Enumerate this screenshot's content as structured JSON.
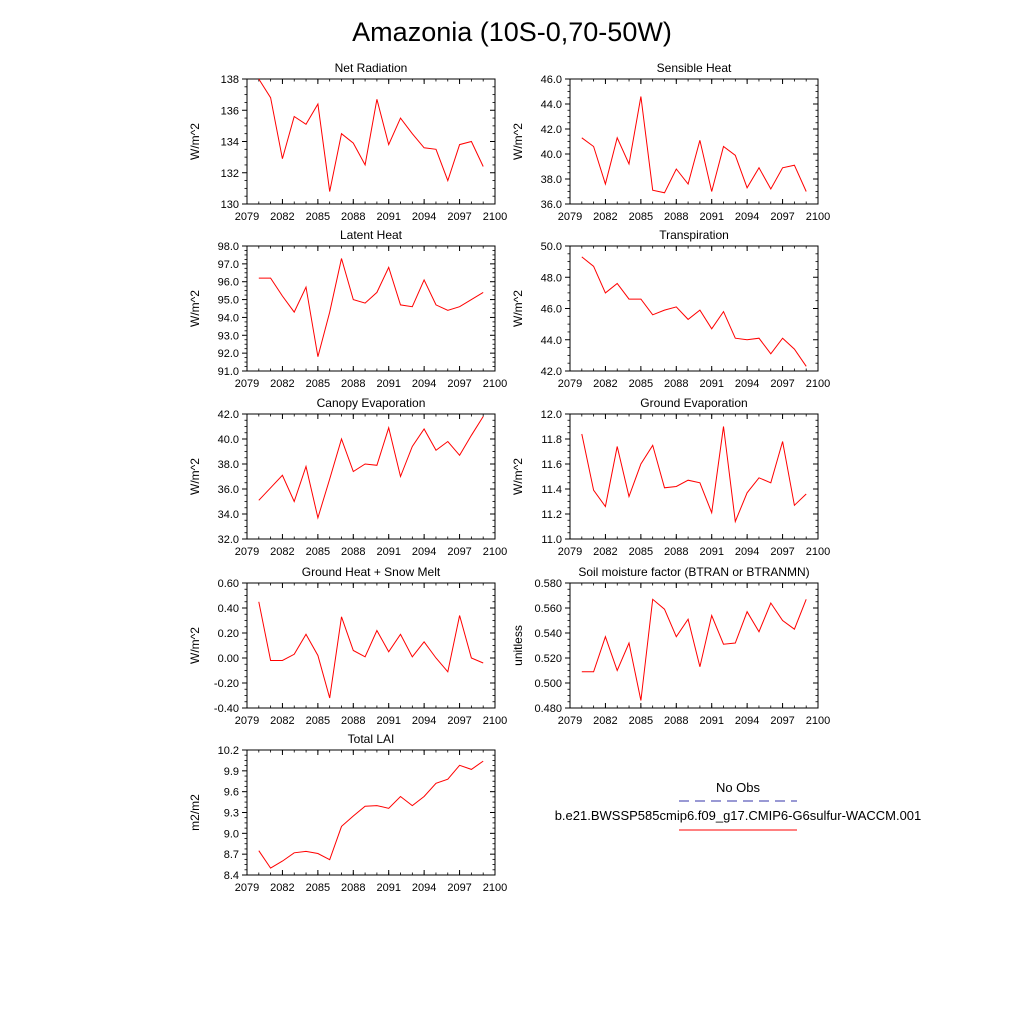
{
  "figure": {
    "title": "Amazonia (10S-0,70-50W)"
  },
  "legend": {
    "obs_label": "No Obs",
    "model_label": "b.e21.BWSSP585cmip6.f09_g17.CMIP6-G6sulfur-WACCM.001",
    "obs_color": "#3333aa",
    "model_color": "#ff0000"
  },
  "chart_data": [
    {
      "type": "line",
      "title": "Net Radiation",
      "ylabel": "W/m^2",
      "xlabel": "",
      "xlim": [
        2079,
        2100
      ],
      "x_ticks": [
        2079,
        2082,
        2085,
        2088,
        2091,
        2094,
        2097,
        2100
      ],
      "ylim": [
        130,
        138
      ],
      "y_ticks": [
        "130",
        "132",
        "134",
        "136",
        "138"
      ],
      "x": [
        2080,
        2081,
        2082,
        2083,
        2084,
        2085,
        2086,
        2087,
        2088,
        2089,
        2090,
        2091,
        2092,
        2093,
        2094,
        2095,
        2096,
        2097,
        2098,
        2099
      ],
      "series": [
        {
          "color": "#ff0000",
          "values": [
            138.0,
            136.8,
            132.9,
            135.6,
            135.1,
            136.4,
            130.8,
            134.5,
            133.9,
            132.5,
            136.7,
            133.8,
            135.5,
            134.5,
            133.6,
            133.5,
            131.5,
            133.8,
            134.0,
            132.4
          ]
        }
      ]
    },
    {
      "type": "line",
      "title": "Sensible Heat",
      "ylabel": "W/m^2",
      "xlabel": "",
      "xlim": [
        2079,
        2100
      ],
      "x_ticks": [
        2079,
        2082,
        2085,
        2088,
        2091,
        2094,
        2097,
        2100
      ],
      "ylim": [
        36.0,
        46.0
      ],
      "y_ticks": [
        "36.0",
        "38.0",
        "40.0",
        "42.0",
        "44.0",
        "46.0"
      ],
      "x": [
        2080,
        2081,
        2082,
        2083,
        2084,
        2085,
        2086,
        2087,
        2088,
        2089,
        2090,
        2091,
        2092,
        2093,
        2094,
        2095,
        2096,
        2097,
        2098,
        2099
      ],
      "series": [
        {
          "color": "#ff0000",
          "values": [
            41.3,
            40.6,
            37.6,
            41.3,
            39.2,
            44.6,
            37.1,
            36.9,
            38.8,
            37.6,
            41.1,
            37.0,
            40.6,
            39.9,
            37.3,
            38.9,
            37.2,
            38.9,
            39.1,
            37.0
          ]
        }
      ]
    },
    {
      "type": "line",
      "title": "Latent Heat",
      "ylabel": "W/m^2",
      "xlabel": "",
      "xlim": [
        2079,
        2100
      ],
      "x_ticks": [
        2079,
        2082,
        2085,
        2088,
        2091,
        2094,
        2097,
        2100
      ],
      "ylim": [
        91.0,
        98.0
      ],
      "y_ticks": [
        "91.0",
        "92.0",
        "93.0",
        "94.0",
        "95.0",
        "96.0",
        "97.0",
        "98.0"
      ],
      "x": [
        2080,
        2081,
        2082,
        2083,
        2084,
        2085,
        2086,
        2087,
        2088,
        2089,
        2090,
        2091,
        2092,
        2093,
        2094,
        2095,
        2096,
        2097,
        2098,
        2099
      ],
      "series": [
        {
          "color": "#ff0000",
          "values": [
            96.2,
            96.2,
            95.2,
            94.3,
            95.7,
            91.8,
            94.3,
            97.3,
            95.0,
            94.8,
            95.4,
            96.8,
            94.7,
            94.6,
            96.1,
            94.7,
            94.4,
            94.6,
            95.0,
            95.4
          ]
        }
      ]
    },
    {
      "type": "line",
      "title": "Transpiration",
      "ylabel": "W/m^2",
      "xlabel": "",
      "xlim": [
        2079,
        2100
      ],
      "x_ticks": [
        2079,
        2082,
        2085,
        2088,
        2091,
        2094,
        2097,
        2100
      ],
      "ylim": [
        42.0,
        50.0
      ],
      "y_ticks": [
        "42.0",
        "44.0",
        "46.0",
        "48.0",
        "50.0"
      ],
      "x": [
        2080,
        2081,
        2082,
        2083,
        2084,
        2085,
        2086,
        2087,
        2088,
        2089,
        2090,
        2091,
        2092,
        2093,
        2094,
        2095,
        2096,
        2097,
        2098,
        2099
      ],
      "series": [
        {
          "color": "#ff0000",
          "values": [
            49.3,
            48.7,
            47.0,
            47.6,
            46.6,
            46.6,
            45.6,
            45.9,
            46.1,
            45.3,
            45.9,
            44.7,
            45.8,
            44.1,
            44.0,
            44.1,
            43.1,
            44.1,
            43.4,
            42.3
          ]
        }
      ]
    },
    {
      "type": "line",
      "title": "Canopy Evaporation",
      "ylabel": "W/m^2",
      "xlabel": "",
      "xlim": [
        2079,
        2100
      ],
      "x_ticks": [
        2079,
        2082,
        2085,
        2088,
        2091,
        2094,
        2097,
        2100
      ],
      "ylim": [
        32.0,
        42.0
      ],
      "y_ticks": [
        "32.0",
        "34.0",
        "36.0",
        "38.0",
        "40.0",
        "42.0"
      ],
      "x": [
        2080,
        2081,
        2082,
        2083,
        2084,
        2085,
        2086,
        2087,
        2088,
        2089,
        2090,
        2091,
        2092,
        2093,
        2094,
        2095,
        2096,
        2097,
        2098,
        2099
      ],
      "series": [
        {
          "color": "#ff0000",
          "values": [
            35.1,
            36.1,
            37.1,
            35.0,
            37.8,
            33.7,
            36.8,
            40.0,
            37.4,
            38.0,
            37.9,
            40.9,
            37.0,
            39.4,
            40.8,
            39.1,
            39.8,
            38.7,
            40.3,
            41.8
          ]
        }
      ]
    },
    {
      "type": "line",
      "title": "Ground Evaporation",
      "ylabel": "W/m^2",
      "xlabel": "",
      "xlim": [
        2079,
        2100
      ],
      "x_ticks": [
        2079,
        2082,
        2085,
        2088,
        2091,
        2094,
        2097,
        2100
      ],
      "ylim": [
        11.0,
        12.0
      ],
      "y_ticks": [
        "11.0",
        "11.2",
        "11.4",
        "11.6",
        "11.8",
        "12.0"
      ],
      "x": [
        2080,
        2081,
        2082,
        2083,
        2084,
        2085,
        2086,
        2087,
        2088,
        2089,
        2090,
        2091,
        2092,
        2093,
        2094,
        2095,
        2096,
        2097,
        2098,
        2099
      ],
      "series": [
        {
          "color": "#ff0000",
          "values": [
            11.84,
            11.39,
            11.26,
            11.74,
            11.34,
            11.6,
            11.75,
            11.41,
            11.42,
            11.47,
            11.45,
            11.21,
            11.9,
            11.14,
            11.37,
            11.49,
            11.45,
            11.78,
            11.27,
            11.36
          ]
        }
      ]
    },
    {
      "type": "line",
      "title": "Ground Heat + Snow Melt",
      "ylabel": "W/m^2",
      "xlabel": "",
      "xlim": [
        2079,
        2100
      ],
      "x_ticks": [
        2079,
        2082,
        2085,
        2088,
        2091,
        2094,
        2097,
        2100
      ],
      "ylim": [
        -0.4,
        0.6
      ],
      "y_ticks": [
        "-0.40",
        "-0.20",
        "0.00",
        "0.20",
        "0.40",
        "0.60"
      ],
      "x": [
        2080,
        2081,
        2082,
        2083,
        2084,
        2085,
        2086,
        2087,
        2088,
        2089,
        2090,
        2091,
        2092,
        2093,
        2094,
        2095,
        2096,
        2097,
        2098,
        2099
      ],
      "series": [
        {
          "color": "#ff0000",
          "values": [
            0.45,
            -0.02,
            -0.02,
            0.03,
            0.19,
            0.02,
            -0.32,
            0.33,
            0.06,
            0.01,
            0.22,
            0.05,
            0.19,
            0.01,
            0.13,
            0.0,
            -0.11,
            0.34,
            0.0,
            -0.04
          ]
        }
      ]
    },
    {
      "type": "line",
      "title": "Soil moisture factor (BTRAN or BTRANMN)",
      "ylabel": "unitless",
      "xlabel": "",
      "xlim": [
        2079,
        2100
      ],
      "x_ticks": [
        2079,
        2082,
        2085,
        2088,
        2091,
        2094,
        2097,
        2100
      ],
      "ylim": [
        0.48,
        0.58
      ],
      "y_ticks": [
        "0.480",
        "0.500",
        "0.520",
        "0.540",
        "0.560",
        "0.580"
      ],
      "x": [
        2080,
        2081,
        2082,
        2083,
        2084,
        2085,
        2086,
        2087,
        2088,
        2089,
        2090,
        2091,
        2092,
        2093,
        2094,
        2095,
        2096,
        2097,
        2098,
        2099
      ],
      "series": [
        {
          "color": "#ff0000",
          "values": [
            0.509,
            0.509,
            0.537,
            0.51,
            0.532,
            0.486,
            0.567,
            0.559,
            0.537,
            0.551,
            0.513,
            0.554,
            0.531,
            0.532,
            0.557,
            0.541,
            0.564,
            0.55,
            0.543,
            0.567
          ]
        }
      ]
    },
    {
      "type": "line",
      "title": "Total LAI",
      "ylabel": "m2/m2",
      "xlabel": "",
      "xlim": [
        2079,
        2100
      ],
      "x_ticks": [
        2079,
        2082,
        2085,
        2088,
        2091,
        2094,
        2097,
        2100
      ],
      "ylim": [
        8.4,
        10.2
      ],
      "y_ticks": [
        "8.4",
        "8.7",
        "9.0",
        "9.3",
        "9.6",
        "9.9",
        "10.2"
      ],
      "x": [
        2080,
        2081,
        2082,
        2083,
        2084,
        2085,
        2086,
        2087,
        2088,
        2089,
        2090,
        2091,
        2092,
        2093,
        2094,
        2095,
        2096,
        2097,
        2098,
        2099
      ],
      "series": [
        {
          "color": "#ff0000",
          "values": [
            8.75,
            8.5,
            8.6,
            8.72,
            8.74,
            8.71,
            8.62,
            9.1,
            9.25,
            9.39,
            9.4,
            9.36,
            9.53,
            9.4,
            9.53,
            9.72,
            9.78,
            9.98,
            9.92,
            10.04
          ]
        }
      ]
    }
  ]
}
